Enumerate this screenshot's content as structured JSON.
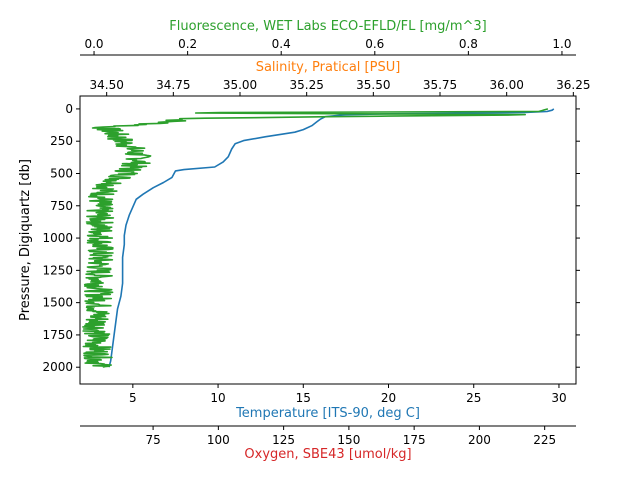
{
  "chart_data": {
    "type": "line",
    "y_axis": {
      "label": "Pressure, Digiquartz [db]",
      "ticks": [
        0,
        250,
        500,
        750,
        1000,
        1250,
        1500,
        1750,
        2000
      ],
      "range": [
        2130,
        -100
      ],
      "inverted": true
    },
    "x_axes": [
      {
        "id": "temperature",
        "position": "bottom",
        "label": "Temperature [ITS-90, deg C]",
        "color": "#1f77b4",
        "range": [
          1.9,
          31.0
        ],
        "ticks": [
          5,
          10,
          15,
          20,
          25,
          30
        ]
      },
      {
        "id": "oxygen",
        "position": "bottom-offset",
        "label": "Oxygen, SBE43 [umol/kg]",
        "color": "#d62728",
        "range": [
          47,
          237
        ],
        "ticks": [
          75,
          100,
          125,
          150,
          175,
          200,
          225
        ]
      },
      {
        "id": "salinity",
        "position": "top",
        "label": "Salinity, Pratical [PSU]",
        "color": "#ff7f0e",
        "range": [
          34.4,
          36.26
        ],
        "ticks": [
          "34.50",
          "34.75",
          "35.00",
          "35.25",
          "35.50",
          "35.75",
          "36.00",
          "36.25"
        ]
      },
      {
        "id": "fluorescence",
        "position": "top-offset",
        "label": "Fluorescence, WET Labs ECO-EFLD/FL [mg/m^3]",
        "color": "#2ca02c",
        "range": [
          -0.03,
          1.03
        ],
        "ticks": [
          "0.0",
          "0.2",
          "0.4",
          "0.6",
          "0.8",
          "1.0"
        ]
      }
    ],
    "series": [
      {
        "axis": "temperature",
        "color": "#1f77b4",
        "points": [
          [
            29.7,
            0
          ],
          [
            29.6,
            10
          ],
          [
            29.3,
            20
          ],
          [
            28.0,
            28
          ],
          [
            25.0,
            33
          ],
          [
            20.0,
            38
          ],
          [
            17.5,
            45
          ],
          [
            16.3,
            60
          ],
          [
            16.0,
            80
          ],
          [
            15.8,
            100
          ],
          [
            15.5,
            130
          ],
          [
            15.0,
            160
          ],
          [
            14.5,
            180
          ],
          [
            13.8,
            195
          ],
          [
            12.8,
            215
          ],
          [
            11.5,
            245
          ],
          [
            11.0,
            270
          ],
          [
            10.8,
            310
          ],
          [
            10.6,
            370
          ],
          [
            10.3,
            410
          ],
          [
            9.8,
            450
          ],
          [
            8.0,
            470
          ],
          [
            7.5,
            480
          ],
          [
            7.3,
            530
          ],
          [
            6.8,
            570
          ],
          [
            6.2,
            610
          ],
          [
            5.6,
            660
          ],
          [
            5.2,
            700
          ],
          [
            5.0,
            760
          ],
          [
            4.8,
            820
          ],
          [
            4.6,
            900
          ],
          [
            4.5,
            980
          ],
          [
            4.5,
            1050
          ],
          [
            4.4,
            1150
          ],
          [
            4.4,
            1250
          ],
          [
            4.4,
            1350
          ],
          [
            4.3,
            1450
          ],
          [
            4.1,
            1550
          ],
          [
            4.0,
            1650
          ],
          [
            3.9,
            1750
          ],
          [
            3.8,
            1850
          ],
          [
            3.7,
            1950
          ],
          [
            3.6,
            2000
          ]
        ]
      },
      {
        "axis": "fluorescence",
        "color": "#2ca02c",
        "profile": [
          [
            0,
            0.97
          ],
          [
            20,
            0.95
          ],
          [
            30,
            0.1
          ],
          [
            45,
            0.98
          ],
          [
            60,
            0.5
          ],
          [
            75,
            0.2
          ],
          [
            100,
            0.16
          ],
          [
            125,
            0.1
          ],
          [
            140,
            0.02
          ],
          [
            180,
            0.04
          ],
          [
            250,
            0.06
          ],
          [
            300,
            0.08
          ],
          [
            350,
            0.09
          ],
          [
            400,
            0.1
          ],
          [
            450,
            0.08
          ],
          [
            500,
            0.07
          ],
          [
            550,
            0.05
          ],
          [
            600,
            0.03
          ],
          [
            650,
            0.02
          ],
          [
            750,
            0.01
          ],
          [
            1000,
            0.015
          ],
          [
            1250,
            0.01
          ],
          [
            1500,
            0.01
          ],
          [
            1750,
            0.005
          ],
          [
            2000,
            0.01
          ]
        ]
      }
    ]
  }
}
